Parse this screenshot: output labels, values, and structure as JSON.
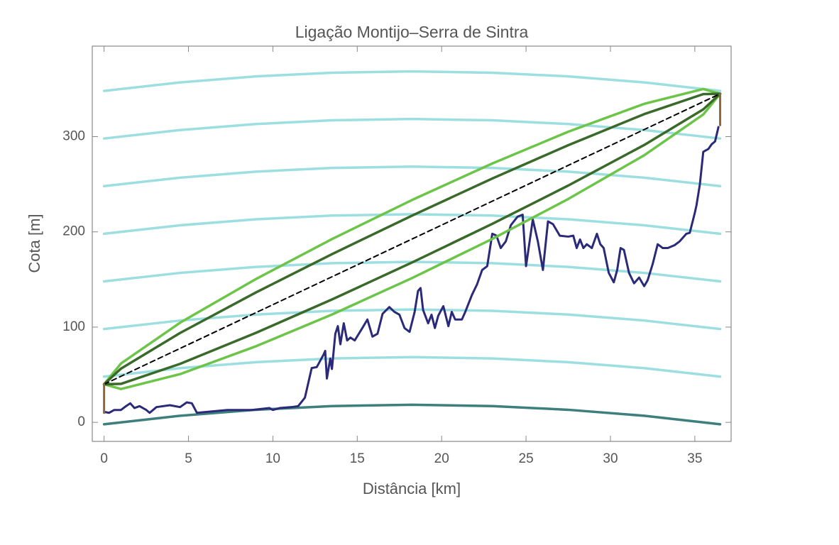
{
  "chart_data": {
    "type": "line",
    "title": "Ligação Montijo–Serra de Sintra",
    "x_label": "Distância [km]",
    "y_label": "Cota [m]",
    "xlim": [
      -0.7,
      37.15
    ],
    "ylim": [
      -20,
      395
    ],
    "xticks": [
      0,
      5,
      10,
      15,
      20,
      25,
      30,
      35
    ],
    "yticks": [
      0,
      100,
      200,
      300
    ],
    "grid": false,
    "series": [
      {
        "color": "#9ddfe0",
        "width": 3.5,
        "x": [
          0,
          4.5,
          9,
          13.5,
          18.25,
          23,
          27.5,
          32,
          36.5
        ],
        "values": [
          48,
          56.9,
          63.2,
          67.1,
          68.5,
          67.1,
          63.2,
          56.9,
          48
        ]
      },
      {
        "color": "#9ddfe0",
        "width": 3.5,
        "x": [
          0,
          4.5,
          9,
          13.5,
          18.25,
          23,
          27.5,
          32,
          36.5
        ],
        "values": [
          98,
          106.9,
          113.2,
          117.1,
          118.5,
          117.1,
          113.2,
          106.9,
          98
        ]
      },
      {
        "color": "#9ddfe0",
        "width": 3.5,
        "x": [
          0,
          4.5,
          9,
          13.5,
          18.25,
          23,
          27.5,
          32,
          36.5
        ],
        "values": [
          148,
          156.9,
          163.2,
          167.1,
          168.5,
          167.1,
          163.2,
          156.9,
          148
        ]
      },
      {
        "color": "#9ddfe0",
        "width": 3.5,
        "x": [
          0,
          4.5,
          9,
          13.5,
          18.25,
          23,
          27.5,
          32,
          36.5
        ],
        "values": [
          198,
          206.9,
          213.2,
          217.1,
          218.5,
          217.1,
          213.2,
          206.9,
          198
        ]
      },
      {
        "color": "#9ddfe0",
        "width": 3.5,
        "x": [
          0,
          4.5,
          9,
          13.5,
          18.25,
          23,
          27.5,
          32,
          36.5
        ],
        "values": [
          248,
          256.9,
          263.2,
          267.1,
          268.5,
          267.1,
          263.2,
          256.9,
          248
        ]
      },
      {
        "color": "#9ddfe0",
        "width": 3.5,
        "x": [
          0,
          4.5,
          9,
          13.5,
          18.25,
          23,
          27.5,
          32,
          36.5
        ],
        "values": [
          298,
          306.9,
          313.2,
          317.1,
          318.5,
          317.1,
          313.2,
          306.9,
          298
        ]
      },
      {
        "color": "#9ddfe0",
        "width": 3.5,
        "x": [
          0,
          4.5,
          9,
          13.5,
          18.25,
          23,
          27.5,
          32,
          36.5
        ],
        "values": [
          348,
          356.9,
          363.2,
          367.1,
          368.5,
          367.1,
          363.2,
          356.9,
          348
        ]
      },
      {
        "color": "#3d7f7c",
        "width": 3.5,
        "x": [
          0,
          4.5,
          9,
          13.5,
          18.25,
          23,
          27.5,
          32,
          36.5
        ],
        "values": [
          -2,
          6.9,
          13.2,
          17.1,
          18.5,
          17.1,
          13.2,
          6.9,
          -2
        ]
      },
      {
        "color": "#2b2a78",
        "width": 3,
        "x": [
          0,
          0.3,
          0.6,
          1.0,
          1.3,
          1.55,
          1.8,
          2.1,
          2.5,
          2.7,
          3.1,
          3.9,
          4.5,
          4.9,
          5.2,
          5.5,
          7.3,
          8.75,
          9.8,
          10.0,
          10.4,
          11.1,
          11.5,
          11.9,
          12.3,
          12.6,
          13.0,
          13.1,
          13.2,
          13.4,
          13.5,
          13.7,
          13.85,
          14.0,
          14.2,
          14.4,
          14.6,
          14.85,
          15.3,
          15.6,
          15.9,
          16.2,
          16.5,
          16.9,
          17.2,
          17.5,
          17.8,
          18.1,
          18.4,
          18.6,
          18.75,
          18.9,
          19.2,
          19.4,
          19.6,
          19.8,
          20.1,
          20.4,
          20.6,
          20.8,
          21.2,
          21.4,
          21.8,
          22.1,
          22.4,
          22.7,
          23.0,
          23.25,
          23.5,
          23.8,
          24.1,
          24.5,
          24.8,
          25.0,
          25.4,
          25.7,
          26.0,
          26.3,
          26.6,
          27.0,
          27.5,
          27.8,
          28.0,
          28.2,
          28.4,
          28.6,
          28.9,
          29.2,
          29.4,
          29.6,
          29.9,
          30.2,
          30.4,
          30.6,
          30.8,
          31.1,
          31.4,
          31.7,
          32.0,
          32.2,
          32.5,
          32.8,
          33.1,
          33.4,
          33.8,
          34.1,
          34.3,
          34.5,
          34.7,
          35.0,
          35.1,
          35.3,
          35.5,
          35.8,
          36.0,
          36.2,
          36.4
        ],
        "values": [
          11,
          10,
          13,
          13,
          17,
          20,
          15,
          17,
          13,
          10,
          16,
          18,
          16,
          21,
          20,
          10,
          13,
          13,
          15,
          13,
          15,
          16,
          17,
          26,
          57,
          58,
          71,
          75,
          46,
          67,
          56,
          93,
          101,
          82,
          104,
          86,
          89,
          86,
          99,
          108,
          90,
          93,
          114,
          121,
          116,
          113,
          99,
          95,
          116,
          138,
          141,
          118,
          104,
          113,
          99,
          112,
          122,
          101,
          116,
          108,
          108,
          116,
          134,
          145,
          160,
          164,
          198,
          196,
          183,
          190,
          207,
          216,
          218,
          164,
          213,
          190,
          160,
          211,
          208,
          196,
          195,
          196,
          183,
          192,
          183,
          187,
          183,
          198,
          187,
          183,
          157,
          147,
          160,
          183,
          181,
          157,
          146,
          152,
          143,
          149,
          166,
          187,
          183,
          183,
          186,
          190,
          194,
          198,
          199,
          220,
          228,
          250,
          284,
          287,
          292,
          295,
          310
        ]
      },
      {
        "color": "#6cc449",
        "width": 3.5,
        "x": [
          0,
          1,
          4.5,
          9,
          13.5,
          18.25,
          23,
          27.5,
          32,
          35.5,
          36.5
        ],
        "values": [
          40,
          61.8,
          104.6,
          150.5,
          192.4,
          233.5,
          271.8,
          305.1,
          334.4,
          350.0,
          345
        ]
      },
      {
        "color": "#6cc449",
        "width": 3.5,
        "x": [
          0,
          1,
          4.5,
          9,
          13.5,
          18.25,
          23,
          27.5,
          32,
          35.5,
          36.5
        ],
        "values": [
          40,
          35.0,
          50.6,
          79.9,
          113.2,
          151.5,
          192.6,
          234.5,
          280.4,
          323.2,
          345
        ]
      },
      {
        "color": "#3a6a2a",
        "width": 3.5,
        "x": [
          0,
          1,
          4.5,
          9,
          13.5,
          18.25,
          23,
          27.5,
          32,
          35.5,
          36.5
        ],
        "values": [
          40,
          56.4,
          93.8,
          136.4,
          176.6,
          217.1,
          256.0,
          291.0,
          323.6,
          344.6,
          345
        ]
      },
      {
        "color": "#3a6a2a",
        "width": 3.5,
        "x": [
          0,
          1,
          4.5,
          9,
          13.5,
          18.25,
          23,
          27.5,
          32,
          35.5,
          36.5
        ],
        "values": [
          40,
          40.4,
          61.4,
          94.0,
          129.0,
          167.9,
          208.4,
          248.6,
          291.2,
          328.6,
          345
        ]
      },
      {
        "color": "#000000",
        "width": 2,
        "dash": true,
        "x": [
          0,
          36.5
        ],
        "values": [
          40,
          345
        ]
      },
      {
        "color": "#8a6a3a",
        "width": 3,
        "x": [
          0,
          0
        ],
        "values": [
          10,
          40
        ]
      },
      {
        "color": "#8a6a3a",
        "width": 3,
        "x": [
          36.5,
          36.5
        ],
        "values": [
          312,
          345
        ]
      }
    ]
  }
}
